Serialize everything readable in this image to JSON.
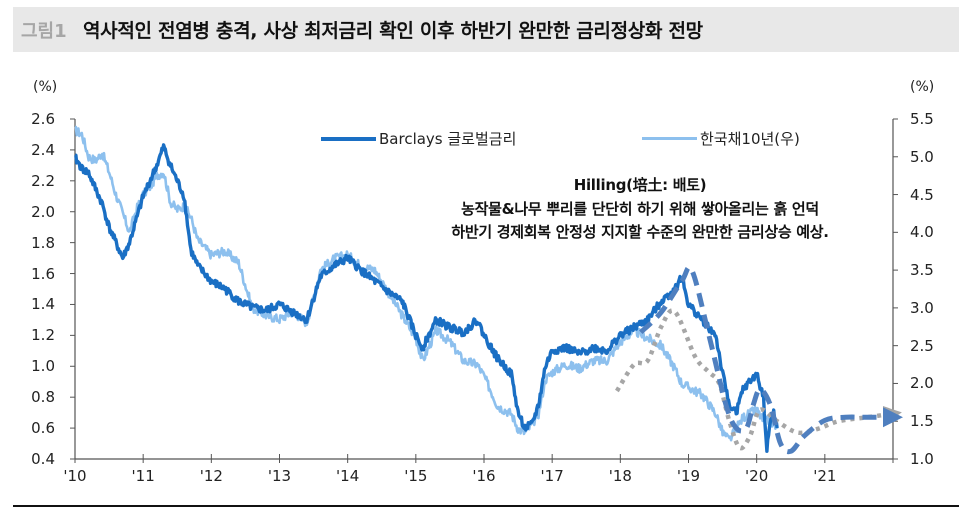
{
  "header": {
    "figure_label": "그림1",
    "title": "역사적인 전염병 충격, 사상 최저금리 확인 이후 하반기 완만한 금리정상화 전망"
  },
  "axes": {
    "left_unit": "(%)",
    "right_unit": "(%)",
    "left_ticks": [
      "2.6",
      "2.4",
      "2.2",
      "2.0",
      "1.8",
      "1.6",
      "1.4",
      "1.2",
      "1.0",
      "0.8",
      "0.6",
      "0.4"
    ],
    "right_ticks": [
      "5.5",
      "5.0",
      "4.5",
      "4.0",
      "3.5",
      "3.0",
      "2.5",
      "2.0",
      "1.5",
      "1.0"
    ],
    "x_ticks": [
      "'10",
      "'11",
      "'12",
      "'13",
      "'14",
      "'15",
      "'16",
      "'17",
      "'18",
      "'19",
      "'20",
      "'21"
    ]
  },
  "legend": {
    "series1": "Barclays 글로벌금리",
    "series2": "한국채10년(우)"
  },
  "annotation": {
    "line1": "Hilling(培土: 배토)",
    "line2": "농작물&나무 뿌리를 단단히 하기 위해 쌓아올리는 흙 언덕",
    "line3": "하반기 경제회복 안정성 지지할 수준의 완만한 금리상승 예상."
  },
  "colors": {
    "barclays": "#1a6fc4",
    "korea10y": "#8dc0ee",
    "forecast_dashed": "#4f7fbf",
    "forecast_dotted": "#a6a6a6",
    "axis": "#555555"
  },
  "chart_data": {
    "type": "line",
    "title": "역사적인 전염병 충격, 사상 최저금리 확인 이후 하반기 완만한 금리정상화 전망",
    "xlabel": "",
    "ylabel_left": "(%)",
    "ylabel_right": "(%)",
    "ylim_left": [
      0.4,
      2.6
    ],
    "ylim_right": [
      1.0,
      5.5
    ],
    "xlim": [
      2010.0,
      2022.0
    ],
    "x_tick_labels": [
      "'10",
      "'11",
      "'12",
      "'13",
      "'14",
      "'15",
      "'16",
      "'17",
      "'18",
      "'19",
      "'20",
      "'21"
    ],
    "legend_position": "top",
    "grid": false,
    "series": [
      {
        "name": "Barclays 글로벌금리",
        "axis": "left",
        "x": [
          2010.0,
          2010.1,
          2010.2,
          2010.3,
          2010.4,
          2010.5,
          2010.6,
          2010.7,
          2010.8,
          2010.9,
          2011.0,
          2011.1,
          2011.2,
          2011.3,
          2011.4,
          2011.5,
          2011.6,
          2011.7,
          2011.8,
          2011.9,
          2012.0,
          2012.2,
          2012.4,
          2012.6,
          2012.8,
          2013.0,
          2013.2,
          2013.4,
          2013.6,
          2013.8,
          2014.0,
          2014.2,
          2014.4,
          2014.6,
          2014.8,
          2015.0,
          2015.1,
          2015.3,
          2015.5,
          2015.7,
          2015.9,
          2016.0,
          2016.2,
          2016.4,
          2016.5,
          2016.6,
          2016.7,
          2016.8,
          2016.9,
          2017.0,
          2017.2,
          2017.4,
          2017.6,
          2017.8,
          2018.0,
          2018.2,
          2018.4,
          2018.6,
          2018.8,
          2018.9,
          2019.0,
          2019.2,
          2019.4,
          2019.5,
          2019.6,
          2019.7,
          2019.8,
          2019.9,
          2020.0,
          2020.1,
          2020.15,
          2020.2,
          2020.25,
          2020.3
        ],
        "values": [
          2.35,
          2.28,
          2.25,
          2.15,
          2.05,
          1.9,
          1.8,
          1.7,
          1.8,
          1.95,
          2.1,
          2.2,
          2.3,
          2.42,
          2.3,
          2.2,
          2.1,
          1.75,
          1.65,
          1.6,
          1.55,
          1.5,
          1.42,
          1.38,
          1.36,
          1.4,
          1.35,
          1.3,
          1.58,
          1.65,
          1.7,
          1.62,
          1.55,
          1.48,
          1.42,
          1.2,
          1.12,
          1.3,
          1.25,
          1.22,
          1.3,
          1.2,
          1.05,
          0.95,
          0.7,
          0.6,
          0.62,
          0.75,
          1.0,
          1.1,
          1.12,
          1.08,
          1.12,
          1.1,
          1.2,
          1.25,
          1.3,
          1.42,
          1.5,
          1.58,
          1.4,
          1.3,
          1.2,
          0.95,
          0.75,
          0.7,
          0.85,
          0.9,
          0.95,
          0.8,
          0.45,
          0.65,
          0.7,
          0.6
        ]
      },
      {
        "name": "한국채10년(우)",
        "axis": "right",
        "x": [
          2010.0,
          2010.1,
          2010.2,
          2010.3,
          2010.4,
          2010.5,
          2010.6,
          2010.7,
          2010.8,
          2010.9,
          2011.0,
          2011.1,
          2011.2,
          2011.3,
          2011.4,
          2011.5,
          2011.6,
          2011.7,
          2011.8,
          2011.9,
          2012.0,
          2012.2,
          2012.4,
          2012.6,
          2012.8,
          2013.0,
          2013.2,
          2013.4,
          2013.6,
          2013.8,
          2014.0,
          2014.2,
          2014.4,
          2014.6,
          2014.8,
          2015.0,
          2015.1,
          2015.3,
          2015.5,
          2015.7,
          2015.9,
          2016.0,
          2016.2,
          2016.4,
          2016.5,
          2016.6,
          2016.7,
          2016.8,
          2016.9,
          2017.0,
          2017.2,
          2017.4,
          2017.6,
          2017.8,
          2018.0,
          2018.2,
          2018.4,
          2018.6,
          2018.8,
          2018.9,
          2019.0,
          2019.2,
          2019.4,
          2019.5,
          2019.6,
          2019.7,
          2019.8,
          2019.9,
          2020.0,
          2020.1,
          2020.2,
          2020.3
        ],
        "values": [
          5.35,
          5.3,
          5.0,
          4.95,
          5.05,
          4.8,
          4.5,
          4.25,
          4.0,
          4.3,
          4.5,
          4.6,
          4.75,
          4.8,
          4.4,
          4.3,
          4.35,
          4.2,
          3.9,
          3.8,
          3.7,
          3.75,
          3.6,
          3.0,
          2.9,
          2.85,
          2.95,
          2.8,
          3.5,
          3.65,
          3.7,
          3.55,
          3.5,
          3.2,
          2.9,
          2.6,
          2.3,
          2.7,
          2.55,
          2.3,
          2.25,
          2.1,
          1.7,
          1.6,
          1.4,
          1.35,
          1.45,
          1.6,
          2.05,
          2.15,
          2.25,
          2.2,
          2.3,
          2.3,
          2.55,
          2.7,
          2.6,
          2.5,
          2.2,
          2.0,
          1.95,
          1.85,
          1.6,
          1.35,
          1.25,
          1.4,
          1.55,
          1.6,
          1.65,
          1.5,
          1.5,
          1.4
        ]
      },
      {
        "name": "forecast_dashed (Barclays path)",
        "style": "dashed",
        "axis": "left",
        "x": [
          2018.3,
          2018.6,
          2018.9,
          2019.05,
          2019.3,
          2019.55,
          2019.7,
          2019.85,
          2019.95,
          2020.05,
          2020.2,
          2020.35,
          2020.5,
          2020.7,
          2021.0,
          2021.3,
          2021.6,
          2022.0
        ],
        "values": [
          1.22,
          1.35,
          1.55,
          1.62,
          1.2,
          0.75,
          0.6,
          0.6,
          0.75,
          0.85,
          0.75,
          0.5,
          0.45,
          0.55,
          0.65,
          0.67,
          0.67,
          0.67
        ]
      },
      {
        "name": "forecast_dotted (Korea 10Y path)",
        "style": "dotted",
        "axis": "right",
        "x": [
          2017.95,
          2018.2,
          2018.4,
          2018.6,
          2018.8,
          2019.1,
          2019.3,
          2019.45,
          2019.6,
          2019.75,
          2019.9,
          2020.05,
          2020.3,
          2020.6,
          2020.9,
          2021.2,
          2021.6,
          2022.0
        ],
        "values": [
          1.9,
          2.25,
          2.3,
          2.75,
          2.95,
          2.35,
          2.15,
          2.0,
          1.5,
          1.15,
          1.3,
          1.65,
          1.5,
          1.35,
          1.4,
          1.5,
          1.55,
          1.6
        ]
      }
    ]
  }
}
